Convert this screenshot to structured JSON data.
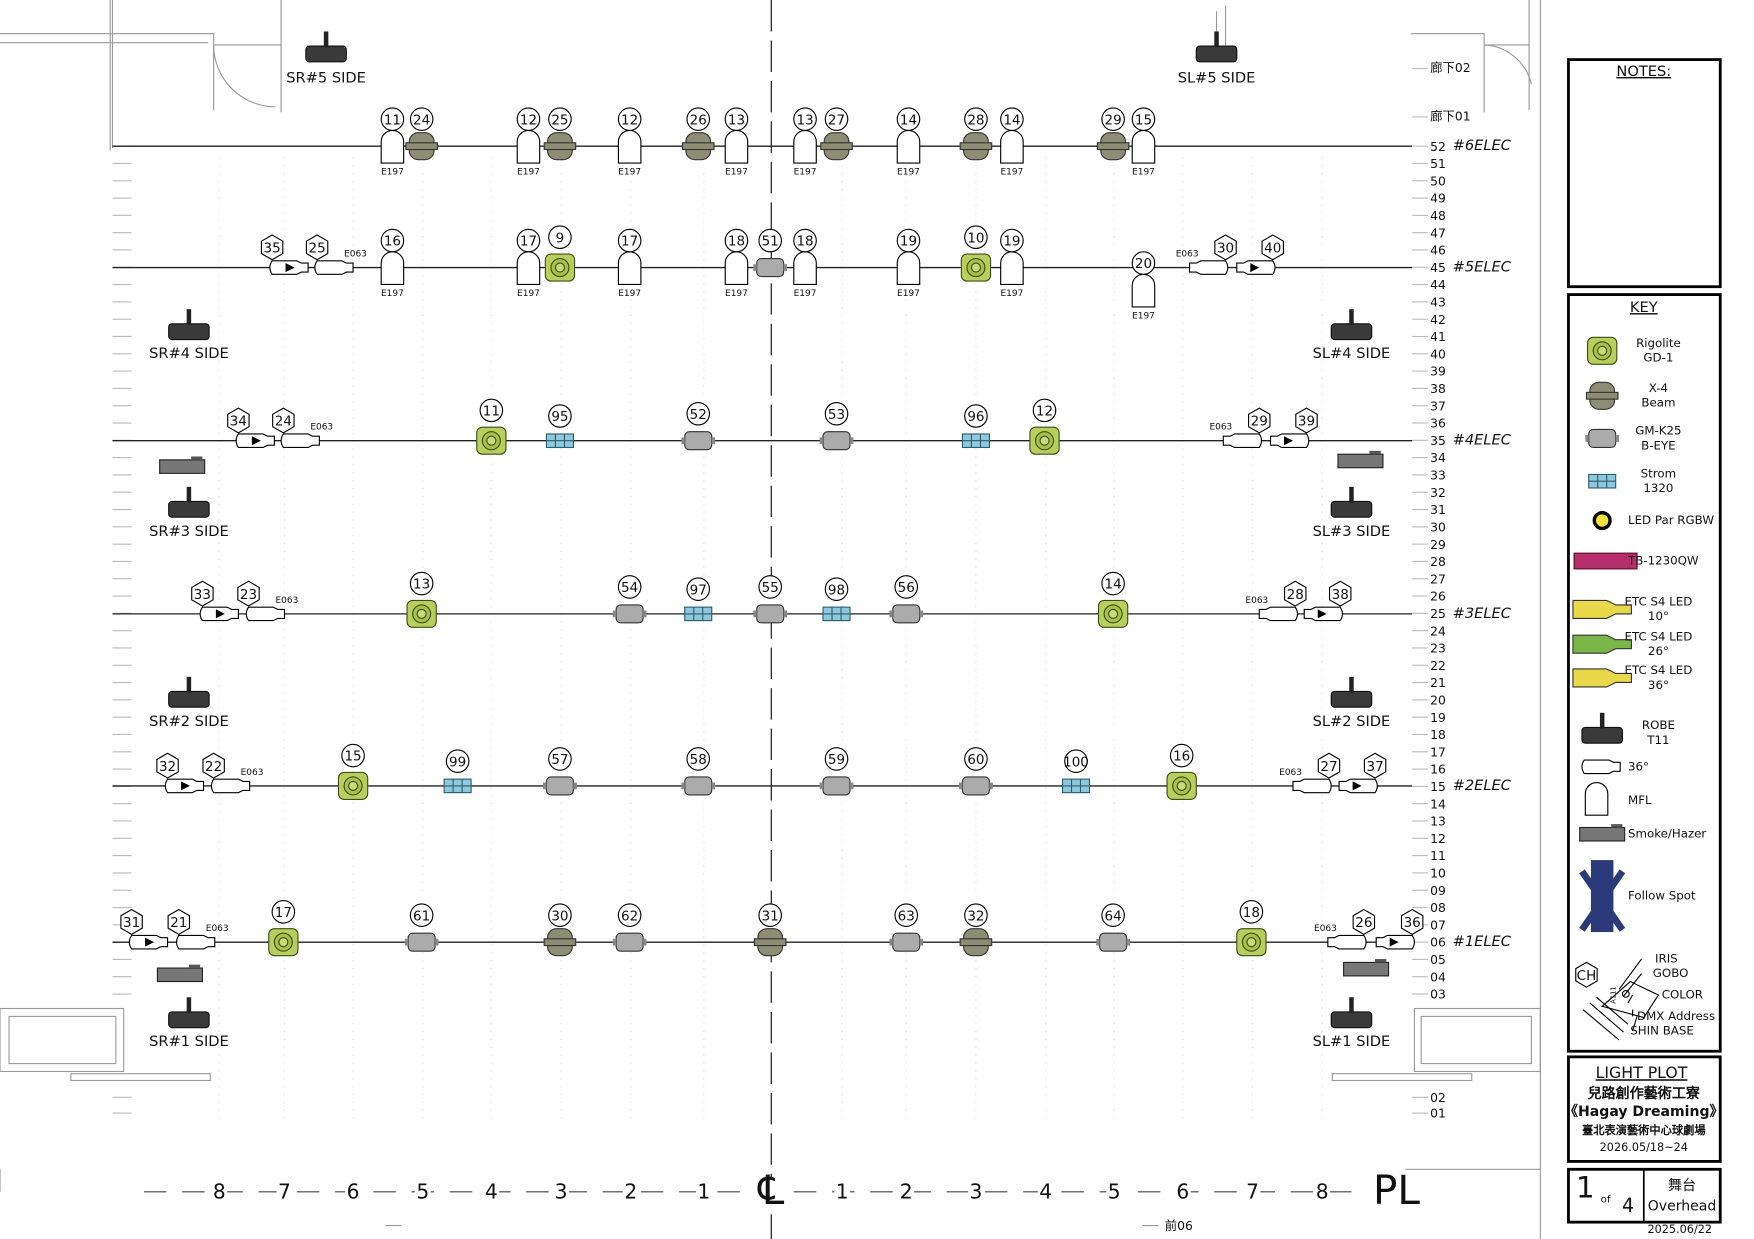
{
  "pipes": [
    {
      "label": "#6ELEC",
      "fixtures": [
        {
          "ch": "11",
          "lens": "E197"
        },
        {
          "ch": "24"
        },
        {
          "ch": "12",
          "lens": "E197"
        },
        {
          "ch": "25"
        },
        {
          "ch": "12",
          "lens": "E197"
        },
        {
          "ch": "26"
        },
        {
          "ch": "13",
          "lens": "E197"
        },
        {
          "ch": "13",
          "lens": "E197"
        },
        {
          "ch": "27"
        },
        {
          "ch": "14",
          "lens": "E197"
        },
        {
          "ch": "28"
        },
        {
          "ch": "14",
          "lens": "E197"
        },
        {
          "ch": "29"
        },
        {
          "ch": "15",
          "lens": "E197"
        }
      ]
    },
    {
      "label": "#5ELEC",
      "fixtures": [
        {
          "ch": "35"
        },
        {
          "ch": "25",
          "lens": "E063"
        },
        {
          "ch": "16",
          "lens": "E197"
        },
        {
          "ch": "17",
          "lens": "E197"
        },
        {
          "ch": "9"
        },
        {
          "ch": "17",
          "lens": "E197"
        },
        {
          "ch": "18",
          "lens": "E197"
        },
        {
          "ch": "51"
        },
        {
          "ch": "18",
          "lens": "E197"
        },
        {
          "ch": "19",
          "lens": "E197"
        },
        {
          "ch": "10"
        },
        {
          "ch": "19",
          "lens": "E197"
        },
        {
          "ch": "20",
          "lens": "E197"
        },
        {
          "ch": "30",
          "lens": "E063"
        },
        {
          "ch": "40"
        }
      ]
    },
    {
      "label": "#4ELEC",
      "fixtures": [
        {
          "ch": "34"
        },
        {
          "ch": "24",
          "lens": "E063"
        },
        {
          "ch": "11"
        },
        {
          "ch": "95"
        },
        {
          "ch": "52"
        },
        {
          "ch": "53"
        },
        {
          "ch": "96"
        },
        {
          "ch": "12"
        },
        {
          "ch": "29",
          "lens": "E063"
        },
        {
          "ch": "39"
        }
      ]
    },
    {
      "label": "#3ELEC",
      "fixtures": [
        {
          "ch": "33"
        },
        {
          "ch": "23",
          "lens": "E063"
        },
        {
          "ch": "13"
        },
        {
          "ch": "54"
        },
        {
          "ch": "97"
        },
        {
          "ch": "55"
        },
        {
          "ch": "98"
        },
        {
          "ch": "56"
        },
        {
          "ch": "14"
        },
        {
          "ch": "28",
          "lens": "E063"
        },
        {
          "ch": "38"
        }
      ]
    },
    {
      "label": "#2ELEC",
      "fixtures": [
        {
          "ch": "32"
        },
        {
          "ch": "22",
          "lens": "E063"
        },
        {
          "ch": "15"
        },
        {
          "ch": "99"
        },
        {
          "ch": "57"
        },
        {
          "ch": "58"
        },
        {
          "ch": "59"
        },
        {
          "ch": "60"
        },
        {
          "ch": "100"
        },
        {
          "ch": "16"
        },
        {
          "ch": "27",
          "lens": "E063"
        },
        {
          "ch": "37"
        }
      ]
    },
    {
      "label": "#1ELEC",
      "fixtures": [
        {
          "ch": "31"
        },
        {
          "ch": "21",
          "lens": "E063"
        },
        {
          "ch": "17"
        },
        {
          "ch": "61"
        },
        {
          "ch": "30"
        },
        {
          "ch": "62"
        },
        {
          "ch": "31"
        },
        {
          "ch": "63"
        },
        {
          "ch": "32"
        },
        {
          "ch": "64"
        },
        {
          "ch": "18"
        },
        {
          "ch": "26",
          "lens": "E063"
        },
        {
          "ch": "36"
        }
      ]
    }
  ],
  "booms": [
    "SR#5 SIDE",
    "SL#5 SIDE",
    "SR#4 SIDE",
    "SL#4 SIDE",
    "SR#3 SIDE",
    "SL#3 SIDE",
    "SR#2 SIDE",
    "SL#2 SIDE",
    "SR#1 SIDE",
    "SL#1 SIDE"
  ],
  "scale": {
    "depth": [
      "52",
      "51",
      "50",
      "49",
      "48",
      "47",
      "46",
      "45",
      "44",
      "43",
      "42",
      "41",
      "40",
      "39",
      "38",
      "37",
      "36",
      "35",
      "34",
      "33",
      "32",
      "31",
      "30",
      "29",
      "28",
      "27",
      "26",
      "25",
      "24",
      "23",
      "22",
      "21",
      "20",
      "19",
      "18",
      "17",
      "16",
      "15",
      "14",
      "13",
      "12",
      "11",
      "10",
      "09",
      "08",
      "07",
      "06",
      "05",
      "04",
      "03",
      "02",
      "01"
    ],
    "corridor": [
      "廊下02",
      "廊下01"
    ],
    "width": [
      "8",
      "7",
      "6",
      "5",
      "4",
      "3",
      "2",
      "1",
      "℄",
      "1",
      "2",
      "3",
      "4",
      "5",
      "6",
      "7",
      "8",
      "PL"
    ],
    "front": "前06"
  },
  "notes": {
    "title": "NOTES:"
  },
  "key": {
    "title": "KEY",
    "items": [
      {
        "lines": [
          "Rigolite",
          "GD-1"
        ]
      },
      {
        "lines": [
          "X-4",
          "Beam"
        ]
      },
      {
        "lines": [
          "GM-K25",
          "B-EYE"
        ]
      },
      {
        "lines": [
          "Strom",
          "1320"
        ]
      },
      {
        "lines": [
          "LED Par RGBW"
        ]
      },
      {
        "lines": [
          "TB-1230QW"
        ]
      },
      {
        "lines": [
          "ETC S4 LED",
          "10°"
        ]
      },
      {
        "lines": [
          "ETC S4 LED",
          "26°"
        ]
      },
      {
        "lines": [
          "ETC S4 LED",
          "36°"
        ]
      },
      {
        "lines": [
          "ROBE",
          "T11"
        ]
      },
      {
        "lines": [
          "36°"
        ]
      },
      {
        "lines": [
          "MFL"
        ]
      },
      {
        "lines": [
          "Smoke/Hazer"
        ]
      },
      {
        "lines": [
          "Follow Spot"
        ]
      }
    ],
    "symbol": {
      "ch": "CH",
      "dmx": "A111",
      "labels": [
        "IRIS",
        "GOBO",
        "COLOR",
        "DMX Address",
        "SHIN BASE"
      ]
    }
  },
  "title_block": {
    "heading": "LIGHT PLOT",
    "company": "兒路創作藝術工寮",
    "show": "《Hagay Dreaming》",
    "venue": "臺北表演藝術中心球劇場",
    "dates": "2026.05/18~24",
    "sheet": "1",
    "of": "of",
    "total": "4",
    "area": "舞台",
    "view": "Overhead",
    "revision": "2025.06/22"
  }
}
